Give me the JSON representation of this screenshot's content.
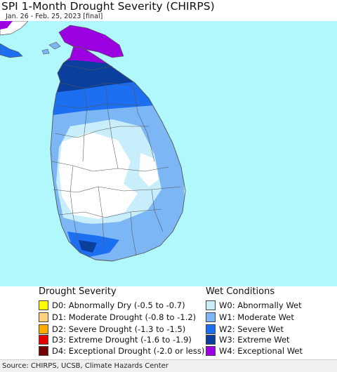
{
  "header": {
    "title": "SPI 1-Month Drought Severity (CHIRPS)",
    "subtitle": "Jan. 26 - Feb. 25, 2023 [final]"
  },
  "colors": {
    "ocean": "#b0f8fb",
    "land_neutral": "#ffffff",
    "borders": "#555555"
  },
  "legend": {
    "drought": {
      "title": "Drought Severity",
      "items": [
        {
          "label": "D0: Abnormally Dry (-0.5 to -0.7)",
          "color": "#ffff00"
        },
        {
          "label": "D1: Moderate Drought (-0.8 to -1.2)",
          "color": "#fcd37f"
        },
        {
          "label": "D2: Severe Drought (-1.3 to -1.5)",
          "color": "#ffaa00"
        },
        {
          "label": "D3: Extreme Drought (-1.6 to -1.9)",
          "color": "#e60000"
        },
        {
          "label": "D4: Exceptional Drought (-2.0 or less)",
          "color": "#730000"
        }
      ]
    },
    "wet": {
      "title": "Wet Conditions",
      "items": [
        {
          "label": "W0: Abnormally Wet",
          "color": "#c8eefc"
        },
        {
          "label": "W1: Moderate Wet",
          "color": "#7db6f5"
        },
        {
          "label": "W2: Severe Wet",
          "color": "#1b6ff0"
        },
        {
          "label": "W3: Extreme Wet",
          "color": "#0b3f9e"
        },
        {
          "label": "W4: Exceptional Wet",
          "color": "#9b00e0"
        }
      ]
    }
  },
  "footer": {
    "source": "Source: CHIRPS, UCSB, Climate Hazards Center"
  }
}
